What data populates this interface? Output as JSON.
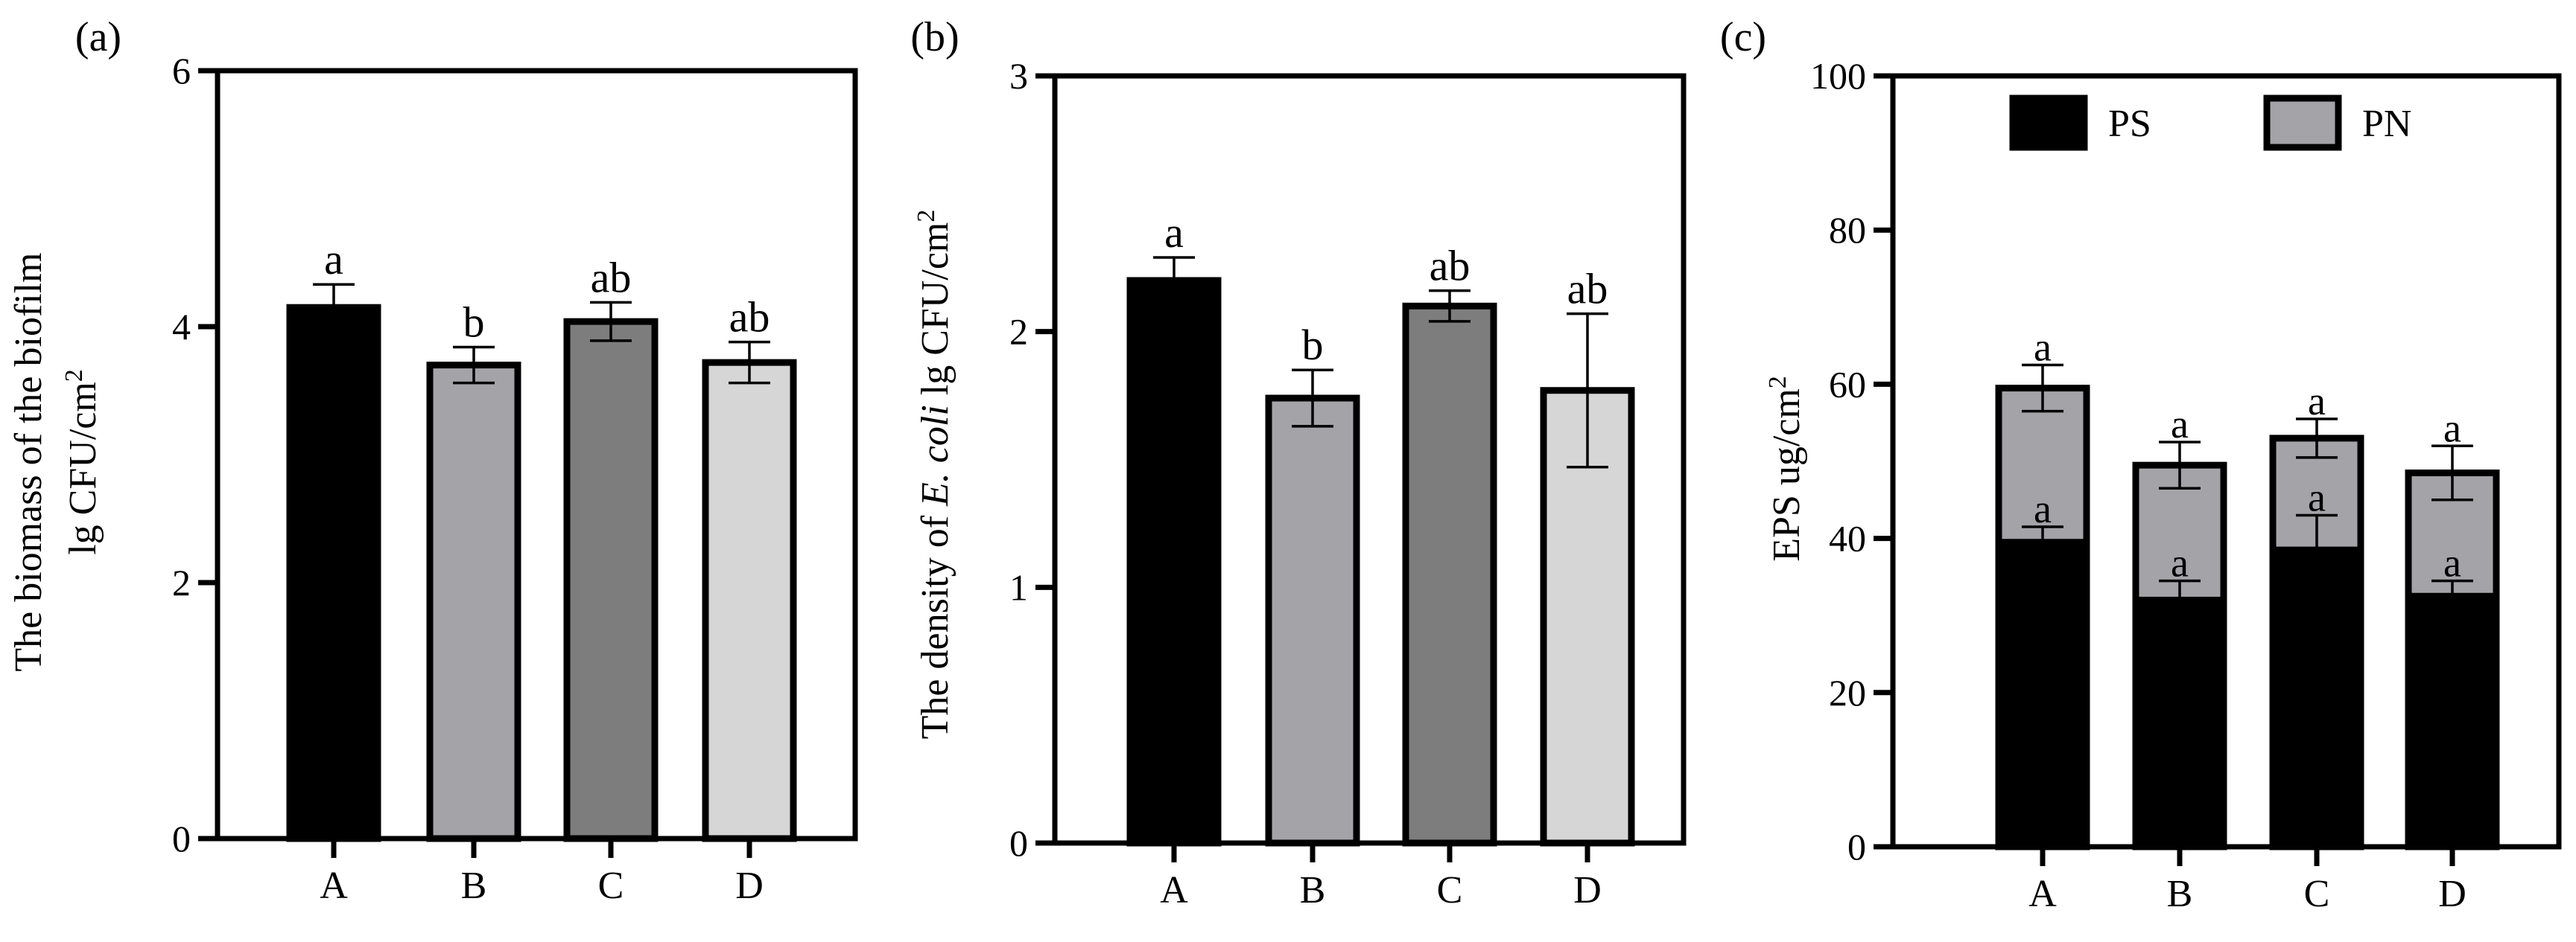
{
  "chart_data": [
    {
      "type": "bar",
      "panel": "(a)",
      "title": "",
      "xlabel": "",
      "ylabel": [
        "The biomass of the biofilm",
        "lg CFU/cm",
        "2"
      ],
      "ylim": [
        0,
        6
      ],
      "yticks": [
        0,
        2,
        4,
        6
      ],
      "categories": [
        "A",
        "B",
        "C",
        "D"
      ],
      "values": [
        4.15,
        3.7,
        4.04,
        3.72
      ],
      "errors": [
        0.18,
        0.14,
        0.15,
        0.16
      ],
      "significance": [
        "a",
        "b",
        "ab",
        "ab"
      ],
      "colors": [
        "#000000",
        "#a3a3a8",
        "#7d7d7d",
        "#d6d6d6"
      ]
    },
    {
      "type": "bar",
      "panel": "(b)",
      "title": "",
      "xlabel": "",
      "ylabel": [
        "The density of ",
        "E. coli",
        " lg CFU/cm",
        "2"
      ],
      "ylim": [
        0,
        3
      ],
      "yticks": [
        0,
        1,
        2,
        3
      ],
      "categories": [
        "A",
        "B",
        "C",
        "D"
      ],
      "values": [
        2.2,
        1.74,
        2.1,
        1.77
      ],
      "errors": [
        0.09,
        0.11,
        0.06,
        0.3
      ],
      "significance": [
        "a",
        "b",
        "ab",
        "ab"
      ],
      "colors": [
        "#000000",
        "#a3a3a8",
        "#7d7d7d",
        "#d6d6d6"
      ]
    },
    {
      "type": "bar",
      "stacked": true,
      "panel": "(c)",
      "title": "",
      "xlabel": "",
      "ylabel": [
        "EPS ug/cm",
        "2"
      ],
      "ylim": [
        0,
        100
      ],
      "yticks": [
        0,
        20,
        40,
        60,
        80,
        100
      ],
      "categories": [
        "A",
        "B",
        "C",
        "D"
      ],
      "legend": {
        "position": "top",
        "entries": [
          "PS",
          "PN"
        ]
      },
      "series": [
        {
          "name": "PS",
          "color": "#000000",
          "values": [
            39.5,
            32,
            38.5,
            32.5
          ],
          "errors": [
            2,
            2.5,
            4.5,
            2
          ],
          "significance": [
            "a",
            "a",
            "a",
            "a"
          ]
        },
        {
          "name": "PN",
          "color": "#a3a3a8",
          "values": [
            20,
            17.5,
            14.5,
            16
          ],
          "errors": [
            3,
            3,
            2.5,
            3.5
          ],
          "significance": [
            "a",
            "a",
            "a",
            "a"
          ]
        }
      ]
    }
  ]
}
